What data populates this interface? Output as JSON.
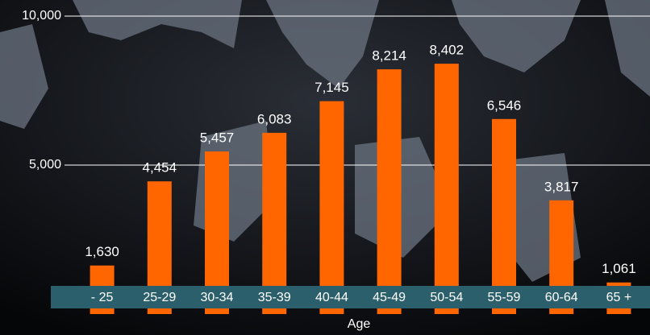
{
  "chart_data": {
    "type": "bar",
    "x_label": "Age",
    "categories": [
      "- 25",
      "25-29",
      "30-34",
      "35-39",
      "40-44",
      "45-49",
      "50-54",
      "55-59",
      "60-64",
      "65 +"
    ],
    "values": [
      1630,
      4454,
      5457,
      6083,
      7145,
      8214,
      8402,
      6546,
      3817,
      1061
    ],
    "value_labels": [
      "1,630",
      "4,454",
      "5,457",
      "6,083",
      "7,145",
      "8,214",
      "8,402",
      "6,546",
      "3,817",
      "1,061"
    ],
    "color": "#ff6600",
    "ylim": [
      0,
      10000
    ],
    "yticks": [
      {
        "value": 5000,
        "label": "5,000"
      },
      {
        "value": 10000,
        "label": "10,000"
      }
    ],
    "grid": true
  }
}
